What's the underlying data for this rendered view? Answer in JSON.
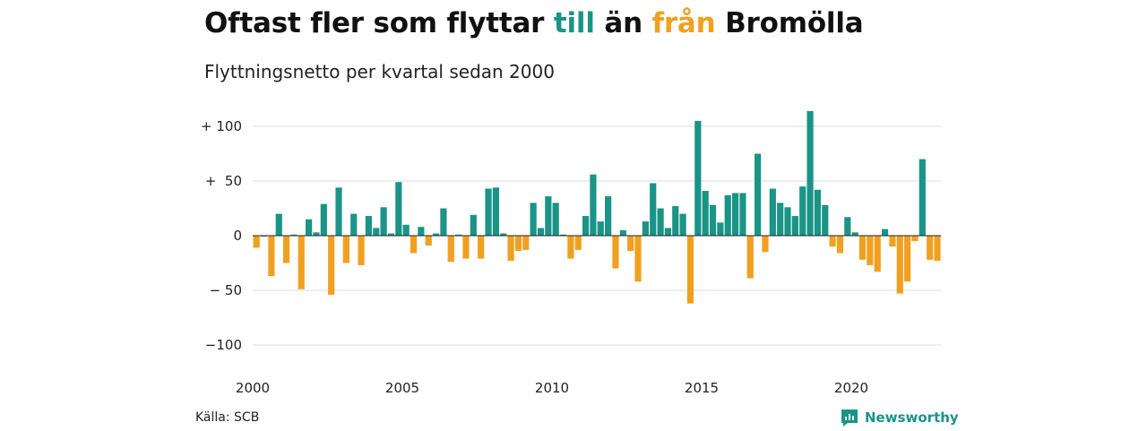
{
  "header": {
    "title_parts": [
      "Oftast fler som flyttar ",
      "till",
      " än ",
      "från",
      " Bromölla"
    ],
    "subtitle": "Flyttningsnetto per kvartal sedan 2000"
  },
  "footer": {
    "source": "Källa: SCB",
    "brand": "Newsworthy"
  },
  "colors": {
    "positive": "#1a9487",
    "negative": "#f0a021",
    "brand": "#1a9487"
  },
  "icons": {
    "brand_logo": "newsworthy-logo-icon"
  },
  "chart_data": {
    "type": "bar",
    "title": "Oftast fler som flyttar till än från Bromölla",
    "subtitle": "Flyttningsnetto per kvartal sedan 2000",
    "start_year": 2000,
    "quarters_per_year": 4,
    "x_ticks": [
      "2000",
      "2005",
      "2010",
      "2015",
      "2020"
    ],
    "y_ticks": [
      {
        "value": 100,
        "label": "+ 100"
      },
      {
        "value": 50,
        "label": "+  50"
      },
      {
        "value": 0,
        "label": "0"
      },
      {
        "value": -50,
        "label": "− 50"
      },
      {
        "value": -100,
        "label": "−100"
      }
    ],
    "ylim": [
      -100,
      100
    ],
    "grid": true,
    "values": [
      -11,
      0,
      -37,
      20,
      -25,
      1,
      -49,
      15,
      3,
      29,
      -54,
      44,
      -25,
      20,
      -27,
      18,
      7,
      26,
      2,
      49,
      10,
      -16,
      8,
      -9,
      2,
      25,
      -24,
      1,
      -21,
      19,
      -21,
      43,
      44,
      2,
      -23,
      -14,
      -13,
      30,
      7,
      36,
      30,
      1,
      -21,
      -13,
      18,
      56,
      13,
      36,
      -30,
      5,
      -14,
      -42,
      13,
      48,
      25,
      7,
      27,
      20,
      -62,
      105,
      41,
      28,
      12,
      37,
      39,
      39,
      -39,
      75,
      -15,
      43,
      30,
      26,
      18,
      45,
      114,
      42,
      28,
      -10,
      -16,
      17,
      3,
      -22,
      -27,
      -33,
      6,
      -10,
      -53,
      -42,
      -5,
      70,
      -22,
      -23
    ]
  }
}
